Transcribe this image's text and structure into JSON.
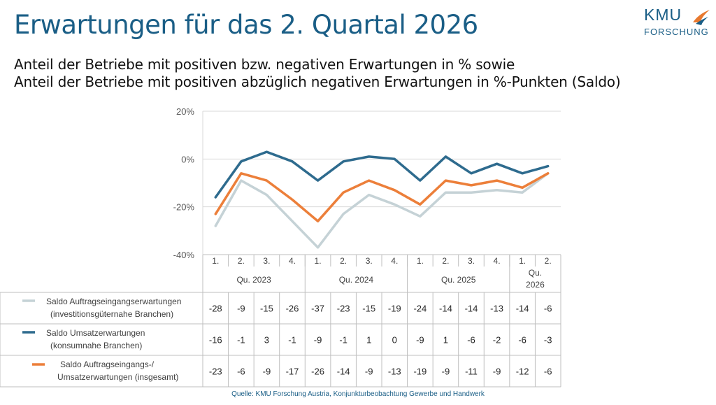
{
  "title": "Erwartungen für das 2. Quartal 2026",
  "subtitle_line1": "Anteil der Betriebe mit positiven bzw. negativen Erwartungen in % sowie",
  "subtitle_line2": "Anteil der Betriebe mit positiven abzüglich negativen Erwartungen in %-Punkten (Saldo)",
  "logo": {
    "line1": "KMU",
    "line2": "FORSCHUNG"
  },
  "source": "Quelle: KMU Forschung Austria, Konjunkturbeobachtung Gewerbe und Handwerk",
  "chart_data": {
    "type": "line",
    "categories": [
      "1.",
      "2.",
      "3.",
      "4.",
      "1.",
      "2.",
      "3.",
      "4.",
      "1.",
      "2.",
      "3.",
      "4.",
      "1.",
      "2."
    ],
    "groups": [
      {
        "label": "Qu. 2023",
        "count": 4
      },
      {
        "label": "Qu. 2024",
        "count": 4
      },
      {
        "label": "Qu. 2025",
        "count": 4
      },
      {
        "label": "Qu. 2026",
        "count": 2
      }
    ],
    "ylim": [
      -40,
      20
    ],
    "yticks": [
      20,
      0,
      -20,
      -40
    ],
    "ytick_labels": [
      "20%",
      "0%",
      "-20%",
      "-40%"
    ],
    "grid": true,
    "series": [
      {
        "name_line1": "Saldo Auftragseingangserwartungen",
        "name_line2": "(investitionsgüternahe Branchen)",
        "color": "#c5d2d6",
        "values": [
          -28,
          -9,
          -15,
          -26,
          -37,
          -23,
          -15,
          -19,
          -24,
          -14,
          -14,
          -13,
          -14,
          -6
        ]
      },
      {
        "name_line1": "Saldo Umsatzerwartungen",
        "name_line2": "(konsumnahe Branchen)",
        "color": "#2e6b8e",
        "values": [
          -16,
          -1,
          3,
          -1,
          -9,
          -1,
          1,
          0,
          -9,
          1,
          -6,
          -2,
          -6,
          -3
        ]
      },
      {
        "name_line1": "Saldo Auftragseingangs-/",
        "name_line2": "Umsatzerwartungen (insgesamt)",
        "color": "#ec7f3a",
        "values": [
          -23,
          -6,
          -9,
          -17,
          -26,
          -14,
          -9,
          -13,
          -19,
          -9,
          -11,
          -9,
          -12,
          -6
        ]
      }
    ]
  }
}
